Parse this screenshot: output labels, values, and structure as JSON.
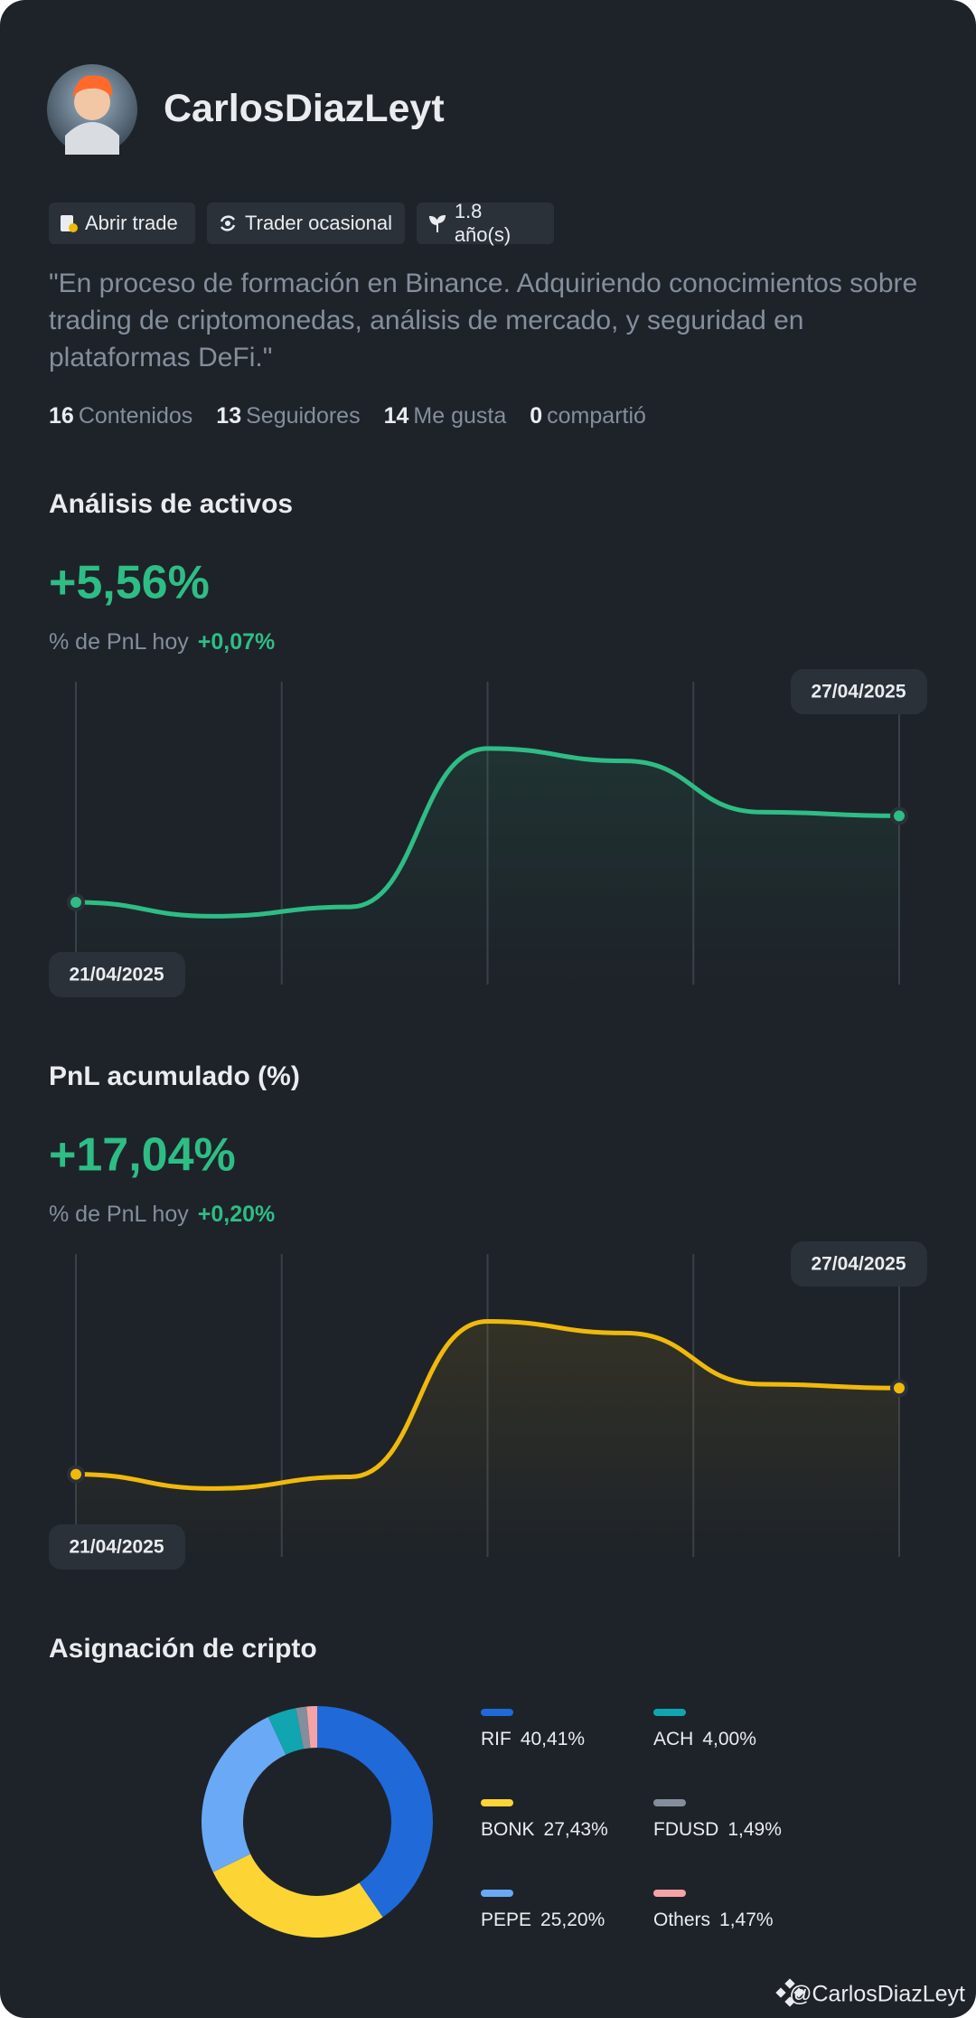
{
  "profile": {
    "name": "CarlosDiazLeyt",
    "tags": [
      "Abrir trade",
      "Trader ocasional",
      "1.8 año(s)"
    ],
    "bio": "\"En proceso de formación en Binance. Adquiriendo conocimientos sobre trading de criptomonedas, análisis de mercado, y seguridad en plataformas DeFi.\"",
    "stats": [
      {
        "value": 16,
        "label": "Contenidos"
      },
      {
        "value": 13,
        "label": "Seguidores"
      },
      {
        "value": 14,
        "label": "Me gusta"
      },
      {
        "value": 0,
        "label": "compartió"
      }
    ]
  },
  "chart_data": [
    {
      "type": "line",
      "title": "Análisis de activos",
      "headline": "+5,56%",
      "subtitle": "% de PnL hoy",
      "subtitle_value": "+0,07%",
      "categories": [
        "21/04/2025",
        null,
        null,
        null,
        null,
        null,
        "27/04/2025"
      ],
      "values": [
        0,
        -0.9,
        -0.3,
        9.9,
        9.1,
        5.8,
        5.56
      ],
      "color": "#2ebd85",
      "ylim": [
        -5.3,
        14.2
      ],
      "grid": true
    },
    {
      "type": "line",
      "title": "PnL acumulado (%)",
      "headline": "+17,04%",
      "subtitle": "% de PnL hoy",
      "subtitle_value": "+0,20%",
      "categories": [
        "21/04/2025",
        null,
        null,
        null,
        null,
        null,
        "27/04/2025"
      ],
      "values": [
        0,
        -2.8,
        -0.5,
        30.2,
        27.9,
        17.8,
        17.04
      ],
      "color": "#f0b90b",
      "ylim": [
        -16.3,
        43.5
      ],
      "grid": true
    },
    {
      "type": "pie",
      "title": "Asignación de cripto",
      "categories": [
        "RIF",
        "BONK",
        "PEPE",
        "ACH",
        "FDUSD",
        "Others"
      ],
      "values": [
        40.41,
        27.43,
        25.2,
        4.0,
        1.49,
        1.47
      ],
      "value_labels": [
        "40,41%",
        "27,43%",
        "25,20%",
        "4,00%",
        "1,49%",
        "1,47%"
      ],
      "colors": [
        "#2069d8",
        "#fcd535",
        "#6aa9f5",
        "#10a5b0",
        "#848e9c",
        "#f6a3a8"
      ]
    }
  ],
  "watermark": "@CarlosDiazLeyt"
}
